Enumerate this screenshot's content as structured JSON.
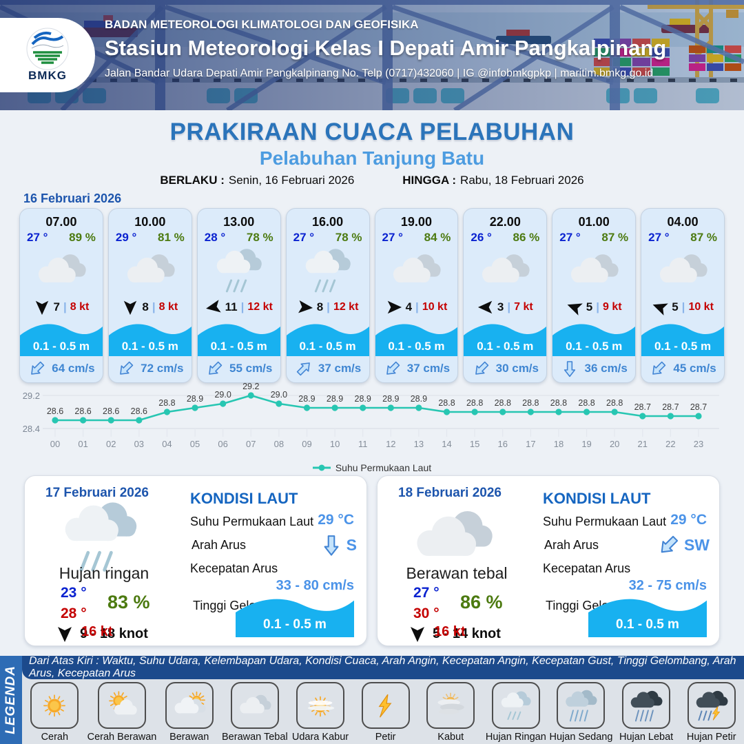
{
  "header": {
    "logo_text": "BMKG",
    "org": "BADAN METEOROLOGI KLIMATOLOGI DAN GEOFISIKA",
    "station": "Stasiun Meteorologi Kelas I Depati Amir Pangkalpinang",
    "address": "Jalan Bandar Udara Depati Amir Pangkalpinang No. Telp (0717)432060 | IG @infobmkgpkp | maritim.bmkg.go.id"
  },
  "title": {
    "main": "PRAKIRAAN CUACA PELABUHAN",
    "subtitle": "Pelabuhan Tanjung Batu",
    "berlaku_label": "BERLAKU :",
    "berlaku_value": "Senin, 16 Februari 2026",
    "hingga_label": "HINGGA :",
    "hingga_value": "Rabu, 18 Februari 2026"
  },
  "forecast_date": "16 Februari 2026",
  "ui": {
    "wind_divider": "|"
  },
  "cards": [
    {
      "time": "07.00",
      "temp": "27 °",
      "humidity": "89 %",
      "icon": "berawan-tebal",
      "wind_deg": 90,
      "wind": "7",
      "gust": "8 kt",
      "wave": "0.1 - 0.5 m",
      "current_deg": 135,
      "current": "64 cm/s"
    },
    {
      "time": "10.00",
      "temp": "29 °",
      "humidity": "81 %",
      "icon": "berawan-tebal",
      "wind_deg": 90,
      "wind": "8",
      "gust": "8 kt",
      "wave": "0.1 - 0.5 m",
      "current_deg": 135,
      "current": "72 cm/s"
    },
    {
      "time": "13.00",
      "temp": "28 °",
      "humidity": "78 %",
      "icon": "hujan-ringan",
      "wind_deg": 170,
      "wind": "11",
      "gust": "12 kt",
      "wave": "0.1 - 0.5 m",
      "current_deg": 135,
      "current": "55 cm/s"
    },
    {
      "time": "16.00",
      "temp": "27 °",
      "humidity": "78 %",
      "icon": "hujan-ringan",
      "wind_deg": 5,
      "wind": "8",
      "gust": "12 kt",
      "wave": "0.1 - 0.5 m",
      "current_deg": 315,
      "current": "37 cm/s"
    },
    {
      "time": "19.00",
      "temp": "27 °",
      "humidity": "84 %",
      "icon": "berawan-tebal",
      "wind_deg": 0,
      "wind": "4",
      "gust": "10 kt",
      "wave": "0.1 - 0.5 m",
      "current_deg": 135,
      "current": "37 cm/s"
    },
    {
      "time": "22.00",
      "temp": "26 °",
      "humidity": "86 %",
      "icon": "berawan-tebal",
      "wind_deg": 180,
      "wind": "3",
      "gust": "7 kt",
      "wave": "0.1 - 0.5 m",
      "current_deg": 135,
      "current": "30 cm/s"
    },
    {
      "time": "01.00",
      "temp": "27 °",
      "humidity": "87 %",
      "icon": "berawan-tebal",
      "wind_deg": 200,
      "wind": "5",
      "gust": "9 kt",
      "wave": "0.1 - 0.5 m",
      "current_deg": 90,
      "current": "36 cm/s"
    },
    {
      "time": "04.00",
      "temp": "27 °",
      "humidity": "87 %",
      "icon": "berawan-tebal",
      "wind_deg": 200,
      "wind": "5",
      "gust": "10 kt",
      "wave": "0.1 - 0.5 m",
      "current_deg": 135,
      "current": "45 cm/s"
    }
  ],
  "chart_data": {
    "type": "line",
    "x": [
      "00",
      "01",
      "02",
      "03",
      "04",
      "05",
      "06",
      "07",
      "08",
      "09",
      "10",
      "11",
      "12",
      "13",
      "14",
      "15",
      "16",
      "17",
      "18",
      "19",
      "20",
      "21",
      "22",
      "23"
    ],
    "series": [
      {
        "name": "Suhu Permukaan Laut",
        "values": [
          28.6,
          28.6,
          28.6,
          28.6,
          28.8,
          28.9,
          29.0,
          29.2,
          29.0,
          28.9,
          28.9,
          28.9,
          28.9,
          28.9,
          28.8,
          28.8,
          28.8,
          28.8,
          28.8,
          28.8,
          28.8,
          28.7,
          28.7,
          28.7
        ]
      }
    ],
    "ylim": [
      28.4,
      29.2
    ],
    "yticks": [
      "29.2",
      "28.4"
    ],
    "grid": true,
    "legend_position": "bottom",
    "line_color": "#27c6b2"
  },
  "panels": [
    {
      "date": "17 Februari 2026",
      "icon": "hujan-ringan",
      "condition": "Hujan ringan",
      "temp_min": "23 °",
      "temp_max": "28 °",
      "humidity": "83 %",
      "wind_deg": 90,
      "wind_range": "9 - 18 knot",
      "gust": "16 kt",
      "sea": {
        "heading": "KONDISI LAUT",
        "sst_label": "Suhu Permukaan Laut",
        "sst": "29 °C",
        "dir_label": "Arah Arus",
        "dir": "S",
        "dir_deg": 90,
        "speed_label": "Kecepatan Arus",
        "speed": "33  - 80 cm/s",
        "wave_label": "Tinggi Gelombang",
        "wave": "0.1 - 0.5 m"
      }
    },
    {
      "date": "18 Februari 2026",
      "icon": "berawan-tebal",
      "condition": "Berawan tebal",
      "temp_min": "27 °",
      "temp_max": "30 °",
      "humidity": "86 %",
      "wind_deg": 90,
      "wind_range": "5 - 14 knot",
      "gust": "16 kt",
      "sea": {
        "heading": "KONDISI LAUT",
        "sst_label": "Suhu Permukaan Laut",
        "sst": "29 °C",
        "dir_label": "Arah Arus",
        "dir": "SW",
        "dir_deg": 135,
        "speed_label": "Kecepatan Arus",
        "speed": "32  - 75 cm/s",
        "wave_label": "Tinggi Gelombang",
        "wave": "0.1 - 0.5 m"
      }
    }
  ],
  "legend": {
    "sidebar": "LEGENDA",
    "description": "Dari Atas Kiri : Waktu, Suhu Udara, Kelembapan Udara, Kondisi Cuaca, Arah Angin, Kecepatan Angin, Kecepatan Gust, Tinggi Gelombang, Arah Arus, Kecepatan Arus",
    "items": [
      {
        "label": "Cerah",
        "icon": "cerah"
      },
      {
        "label": "Cerah Berawan",
        "icon": "cerah-berawan"
      },
      {
        "label": "Berawan",
        "icon": "berawan"
      },
      {
        "label": "Berawan Tebal",
        "icon": "berawan-tebal"
      },
      {
        "label": "Udara Kabur",
        "icon": "udara-kabur"
      },
      {
        "label": "Petir",
        "icon": "petir"
      },
      {
        "label": "Kabut",
        "icon": "kabut"
      },
      {
        "label": "Hujan Ringan",
        "icon": "hujan-ringan"
      },
      {
        "label": "Hujan Sedang",
        "icon": "hujan-sedang"
      },
      {
        "label": "Hujan Lebat",
        "icon": "hujan-lebat"
      },
      {
        "label": "Hujan Petir",
        "icon": "hujan-petir"
      }
    ]
  },
  "colors": {
    "temp_blue": "#0a22d0",
    "humidity_green": "#4c7a10",
    "gust_red": "#c40000",
    "wave_blue": "#18b1f0",
    "current_blue": "#3f86d2",
    "sea_value_blue": "#4b93e8",
    "chart_teal": "#27c6b2",
    "title_blue": "#2b74ba",
    "subtitle_blue": "#4d9ce0"
  }
}
